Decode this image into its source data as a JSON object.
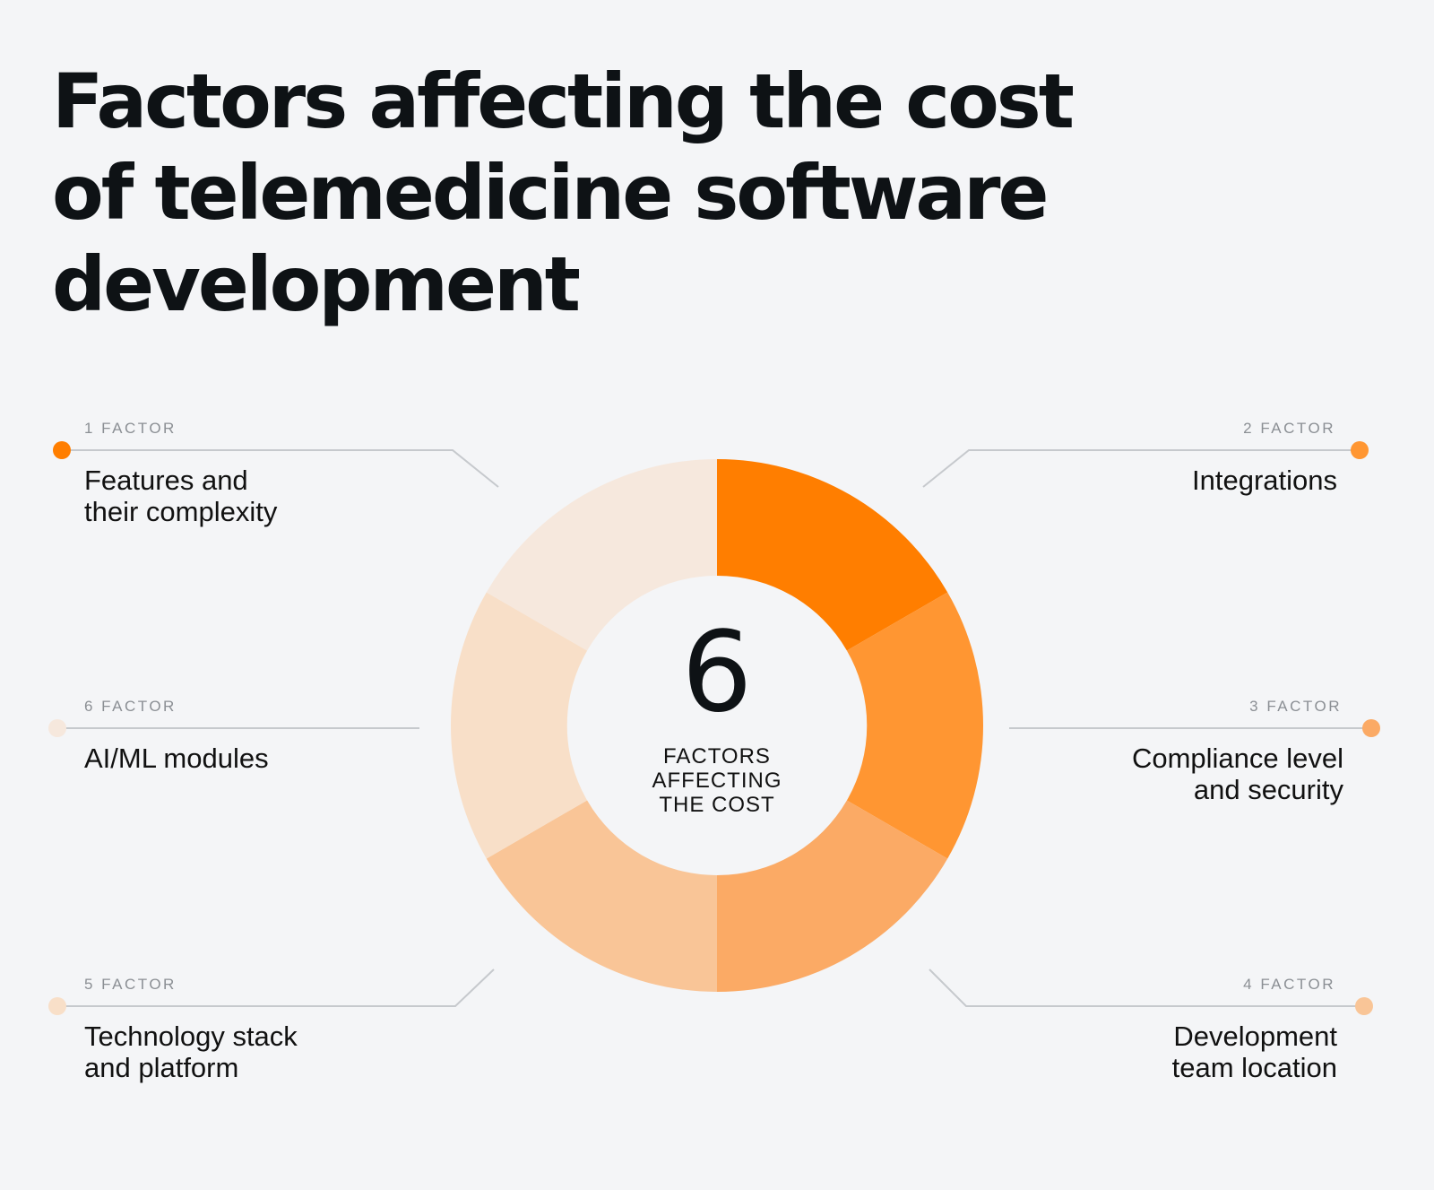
{
  "title": {
    "lines": [
      "Factors affecting the cost",
      "of telemedicine software",
      "development"
    ]
  },
  "center": {
    "number": "6",
    "caption": [
      "FACTORS",
      "AFFECTING",
      "THE COST"
    ]
  },
  "factors": [
    {
      "number_label": "1 FACTOR",
      "label": [
        "Features and",
        "their complexity"
      ],
      "color": "#ff7e00"
    },
    {
      "number_label": "2 FACTOR",
      "label": [
        "Integrations"
      ],
      "color": "#ff9632"
    },
    {
      "number_label": "3 FACTOR",
      "label": [
        "Compliance level",
        "and security"
      ],
      "color": "#fbaa65"
    },
    {
      "number_label": "4 FACTOR",
      "label": [
        "Development",
        "team location"
      ],
      "color": "#f9c597"
    },
    {
      "number_label": "5 FACTOR",
      "label": [
        "Technology stack",
        "and platform"
      ],
      "color": "#f8dfc8"
    },
    {
      "number_label": "6 FACTOR",
      "label": [
        "AI/ML modules"
      ],
      "color": "#f6e8dd"
    }
  ],
  "line_color": "#c6c9cd"
}
